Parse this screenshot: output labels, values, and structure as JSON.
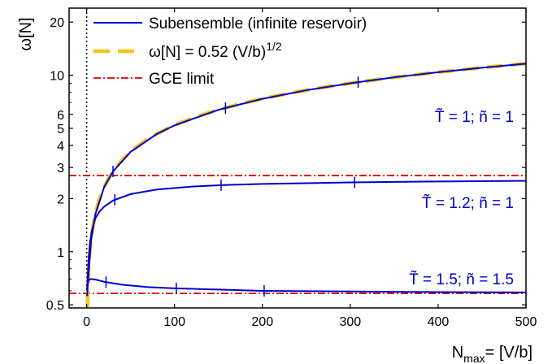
{
  "chart_data": {
    "type": "line",
    "ylog": true,
    "xlim": [
      -20,
      500
    ],
    "ylim": [
      0.48,
      24
    ],
    "xlabel": {
      "main": "N",
      "sub": "max",
      "rest": "= [V/b]"
    },
    "ylabel": "ω[N]",
    "x_ticks": [
      0,
      100,
      200,
      300,
      400,
      500
    ],
    "x_tick_labels": [
      "0",
      "100",
      "200",
      "300",
      "400",
      "500"
    ],
    "y_ticks": [
      0.5,
      1,
      2,
      3,
      4,
      5,
      6,
      10,
      20
    ],
    "y_tick_labels": [
      "0.5",
      "1",
      "2",
      "3",
      "4",
      "5",
      "6",
      "10",
      "20"
    ],
    "legend_position": "top-left",
    "legend": [
      {
        "label": "Subensemble (infinite reservoir)",
        "style": "solid",
        "color": "#0000cc"
      },
      {
        "label_main": "ω[N] = 0.52 (V/b)",
        "label_sup": "1/2",
        "style": "dashed",
        "color": "#f5c518"
      },
      {
        "label": "GCE limit",
        "style": "dashdot",
        "color": "#dd0000"
      }
    ],
    "vertical_reference_line": {
      "x": 0,
      "style": "dotted",
      "color": "#000000"
    },
    "fit": {
      "coefficient": 0.52,
      "exponent": 0.5,
      "color": "#f5c518"
    },
    "gce_limits": [
      2.7,
      0.58
    ],
    "series": [
      {
        "params": "T=1, n=1",
        "x": [
          0.5,
          2,
          5,
          10,
          20,
          30,
          50,
          80,
          100,
          150,
          200,
          250,
          300,
          350,
          400,
          450,
          500
        ],
        "y": [
          0.56,
          0.73,
          1.16,
          1.64,
          2.33,
          2.85,
          3.68,
          4.65,
          5.2,
          6.37,
          7.35,
          8.22,
          9.0,
          9.73,
          10.4,
          11.03,
          11.63
        ],
        "tick_x": [
          30,
          158,
          309
        ]
      },
      {
        "params": "T=1.2, n=1",
        "x": [
          0.5,
          2,
          4,
          6,
          10,
          15,
          20,
          30,
          50,
          80,
          120,
          160,
          200,
          300,
          400,
          500
        ],
        "y": [
          0.6,
          0.88,
          1.15,
          1.32,
          1.55,
          1.7,
          1.8,
          1.95,
          2.12,
          2.25,
          2.34,
          2.39,
          2.42,
          2.47,
          2.5,
          2.52
        ],
        "tick_x": [
          32,
          153,
          305
        ]
      },
      {
        "params": "T=1.5, n=1.5",
        "x": [
          0.5,
          2,
          5,
          10,
          20,
          40,
          70,
          100,
          150,
          200,
          300,
          400,
          500
        ],
        "y": [
          0.62,
          0.69,
          0.7,
          0.695,
          0.675,
          0.65,
          0.63,
          0.62,
          0.61,
          0.6,
          0.595,
          0.59,
          0.588
        ],
        "tick_x": [
          22,
          102,
          202
        ]
      }
    ],
    "annotations": [
      {
        "text": "T̃ = 1;  ñ = 1",
        "color": "#0000cc"
      },
      {
        "text": "T̃ = 1.2;  ñ = 1",
        "color": "#0000cc"
      },
      {
        "text": "T̃ = 1.5;  ñ = 1.5",
        "color": "#0000cc"
      }
    ]
  }
}
